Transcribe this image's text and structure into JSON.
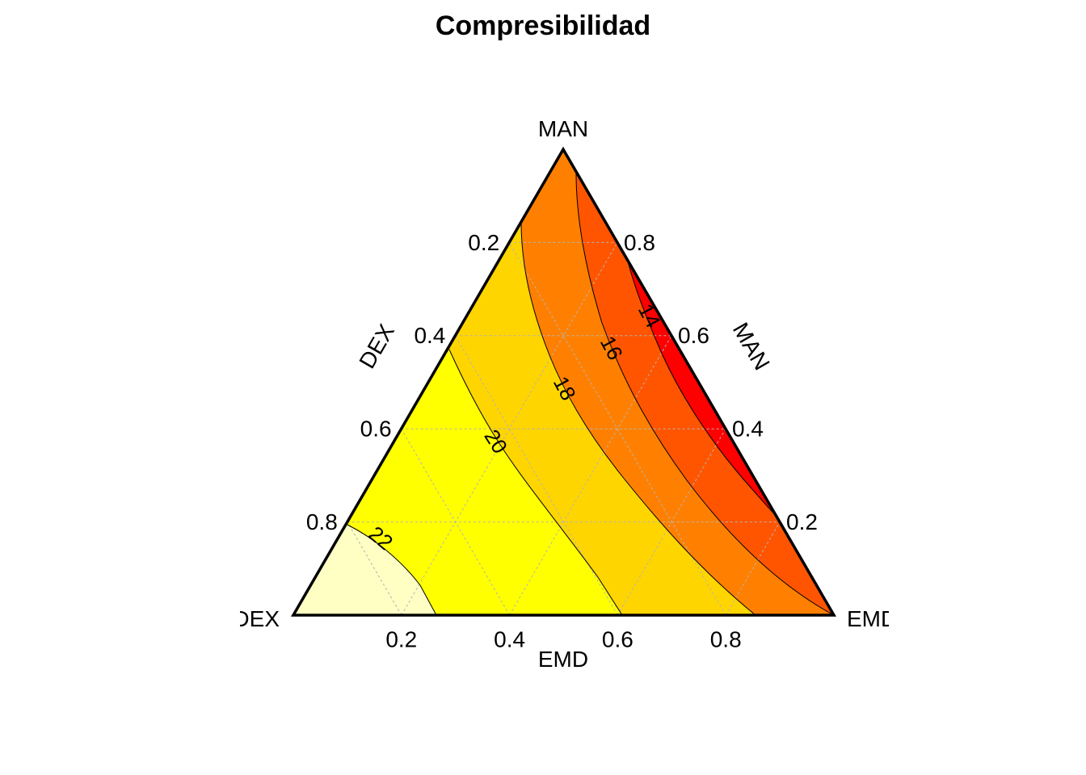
{
  "chart_data": {
    "type": "ternary-contour",
    "title": "Compresibilidad",
    "vertices": {
      "top": "MAN",
      "left": "DEX",
      "right": "EMD"
    },
    "axes": {
      "left": {
        "label": "DEX",
        "ticks": [
          0.2,
          0.4,
          0.6,
          0.8
        ],
        "tick_labels": [
          "0.2",
          "0.4",
          "0.6",
          "0.8"
        ]
      },
      "right": {
        "label": "MAN",
        "ticks": [
          0.8,
          0.6,
          0.4,
          0.2
        ],
        "tick_labels": [
          "0.8",
          "0.6",
          "0.4",
          "0.2"
        ]
      },
      "bottom": {
        "label": "EMD",
        "ticks": [
          0.2,
          0.4,
          0.6,
          0.8
        ],
        "tick_labels": [
          "0.2",
          "0.4",
          "0.6",
          "0.8"
        ]
      }
    },
    "grid": true,
    "contour_levels": [
      14,
      16,
      18,
      20,
      22
    ],
    "contour_labels": [
      "14",
      "16",
      "18",
      "20",
      "22"
    ],
    "fill_colors": [
      "#FF0000",
      "#FF5500",
      "#FF8000",
      "#FFD500",
      "#FFFF00",
      "#FFFFC4"
    ]
  }
}
